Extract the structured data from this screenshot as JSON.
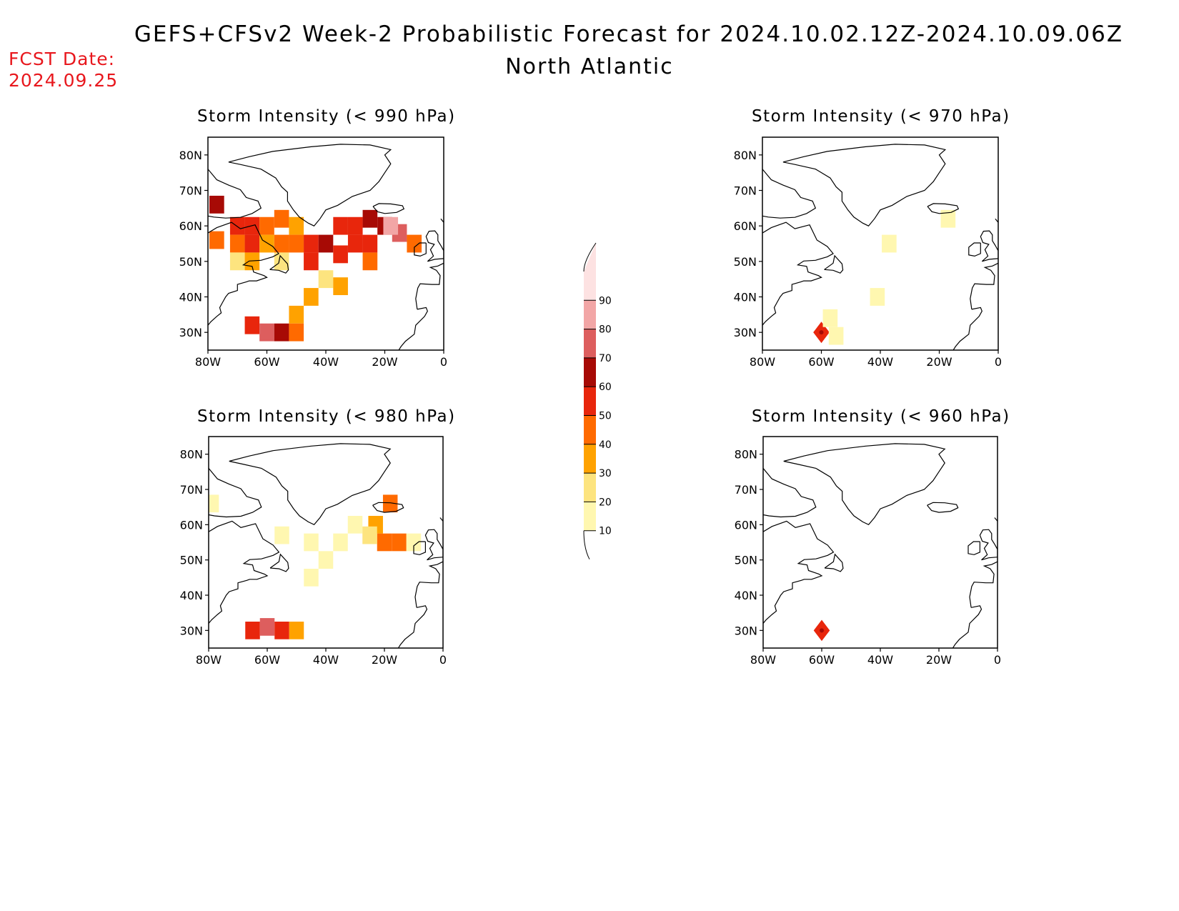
{
  "title": "GEFS+CFSv2 Week-2 Probabilistic Forecast for 2024.10.02.12Z-2024.10.09.06Z",
  "subtitle": "North Atlantic",
  "fcst_label": "FCST Date:",
  "fcst_date": "2024.09.25",
  "panels": [
    {
      "id": "p990",
      "title": "Storm Intensity (< 990 hPa)"
    },
    {
      "id": "p970",
      "title": "Storm Intensity (< 970 hPa)"
    },
    {
      "id": "p980",
      "title": "Storm Intensity (< 980 hPa)"
    },
    {
      "id": "p960",
      "title": "Storm Intensity (< 960 hPa)"
    }
  ],
  "axes": {
    "lat_labels": [
      "80N",
      "70N",
      "60N",
      "50N",
      "40N",
      "30N"
    ],
    "lon_labels": [
      "80W",
      "60W",
      "40W",
      "20W",
      "0"
    ],
    "lat_values": [
      80,
      70,
      60,
      50,
      40,
      30
    ],
    "lon_values": [
      -80,
      -60,
      -40,
      -20,
      0
    ],
    "lat_range": [
      25,
      85
    ],
    "lon_range": [
      -80,
      0
    ]
  },
  "colorbar": {
    "levels": [
      "10",
      "20",
      "30",
      "40",
      "50",
      "60",
      "70",
      "80",
      "90"
    ],
    "colors": [
      "#fff7b0",
      "#fde47f",
      "#ffa200",
      "#ff6a00",
      "#e8260c",
      "#a70a05",
      "#dd5e5e",
      "#f2a6a6",
      "#fde2e2"
    ]
  },
  "chart_data": [
    {
      "type": "heatmap",
      "title": "Storm Intensity (< 990 hPa)",
      "units": "%",
      "cells": [
        {
          "lon": -77,
          "lat": 66,
          "v": 65
        },
        {
          "lon": -77,
          "lat": 56,
          "v": 40
        },
        {
          "lon": -70,
          "lat": 60,
          "v": 55
        },
        {
          "lon": -65,
          "lat": 60,
          "v": 50
        },
        {
          "lon": -60,
          "lat": 60,
          "v": 45
        },
        {
          "lon": -55,
          "lat": 62,
          "v": 40
        },
        {
          "lon": -50,
          "lat": 60,
          "v": 35
        },
        {
          "lon": -70,
          "lat": 55,
          "v": 40
        },
        {
          "lon": -65,
          "lat": 55,
          "v": 50
        },
        {
          "lon": -60,
          "lat": 55,
          "v": 35
        },
        {
          "lon": -55,
          "lat": 55,
          "v": 45
        },
        {
          "lon": -50,
          "lat": 55,
          "v": 40
        },
        {
          "lon": -45,
          "lat": 55,
          "v": 55
        },
        {
          "lon": -40,
          "lat": 55,
          "v": 60
        },
        {
          "lon": -35,
          "lat": 60,
          "v": 55
        },
        {
          "lon": -30,
          "lat": 60,
          "v": 55
        },
        {
          "lon": -25,
          "lat": 62,
          "v": 60
        },
        {
          "lon": -20,
          "lat": 60,
          "v": 65
        },
        {
          "lon": -15,
          "lat": 58,
          "v": 75
        },
        {
          "lon": -18,
          "lat": 60,
          "v": 80
        },
        {
          "lon": -10,
          "lat": 55,
          "v": 45
        },
        {
          "lon": -30,
          "lat": 55,
          "v": 55
        },
        {
          "lon": -25,
          "lat": 55,
          "v": 50
        },
        {
          "lon": -35,
          "lat": 52,
          "v": 50
        },
        {
          "lon": -25,
          "lat": 50,
          "v": 45
        },
        {
          "lon": -45,
          "lat": 50,
          "v": 50
        },
        {
          "lon": -70,
          "lat": 50,
          "v": 25
        },
        {
          "lon": -65,
          "lat": 50,
          "v": 30
        },
        {
          "lon": -55,
          "lat": 50,
          "v": 25
        },
        {
          "lon": -40,
          "lat": 45,
          "v": 25
        },
        {
          "lon": -35,
          "lat": 43,
          "v": 35
        },
        {
          "lon": -45,
          "lat": 40,
          "v": 30
        },
        {
          "lon": -50,
          "lat": 35,
          "v": 30
        },
        {
          "lon": -65,
          "lat": 32,
          "v": 55
        },
        {
          "lon": -60,
          "lat": 30,
          "v": 75
        },
        {
          "lon": -55,
          "lat": 30,
          "v": 65
        },
        {
          "lon": -50,
          "lat": 30,
          "v": 45
        }
      ]
    },
    {
      "type": "heatmap",
      "title": "Storm Intensity (< 970 hPa)",
      "units": "%",
      "cells": [
        {
          "lon": -60,
          "lat": 30,
          "v": 55
        },
        {
          "lon": -55,
          "lat": 29,
          "v": 15
        },
        {
          "lon": -57,
          "lat": 34,
          "v": 10
        },
        {
          "lon": -37,
          "lat": 55,
          "v": 15
        },
        {
          "lon": -17,
          "lat": 62,
          "v": 15
        },
        {
          "lon": -41,
          "lat": 40,
          "v": 10
        }
      ]
    },
    {
      "type": "heatmap",
      "title": "Storm Intensity (< 980 hPa)",
      "units": "%",
      "cells": [
        {
          "lon": -18,
          "lat": 66,
          "v": 45
        },
        {
          "lon": -23,
          "lat": 60,
          "v": 35
        },
        {
          "lon": -20,
          "lat": 55,
          "v": 40
        },
        {
          "lon": -15,
          "lat": 55,
          "v": 45
        },
        {
          "lon": -10,
          "lat": 55,
          "v": 15
        },
        {
          "lon": -30,
          "lat": 60,
          "v": 15
        },
        {
          "lon": -25,
          "lat": 57,
          "v": 20
        },
        {
          "lon": -35,
          "lat": 55,
          "v": 15
        },
        {
          "lon": -45,
          "lat": 55,
          "v": 10
        },
        {
          "lon": -40,
          "lat": 50,
          "v": 10
        },
        {
          "lon": -55,
          "lat": 57,
          "v": 10
        },
        {
          "lon": -45,
          "lat": 45,
          "v": 10
        },
        {
          "lon": -65,
          "lat": 30,
          "v": 50
        },
        {
          "lon": -60,
          "lat": 31,
          "v": 75
        },
        {
          "lon": -55,
          "lat": 30,
          "v": 55
        },
        {
          "lon": -50,
          "lat": 30,
          "v": 30
        },
        {
          "lon": -79,
          "lat": 66,
          "v": 15
        }
      ]
    },
    {
      "type": "heatmap",
      "title": "Storm Intensity (< 960 hPa)",
      "units": "%",
      "cells": [
        {
          "lon": -60,
          "lat": 30,
          "v": 55
        }
      ]
    }
  ]
}
